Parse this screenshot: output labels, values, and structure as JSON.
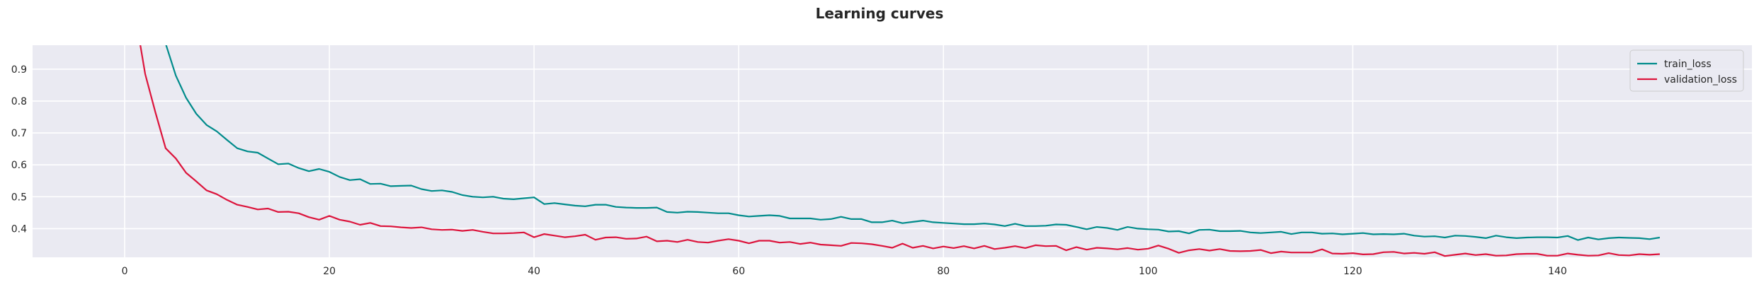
{
  "chart_data": {
    "type": "line",
    "title": "Learning curves",
    "xlabel": "",
    "ylabel": "",
    "xlim": [
      -9,
      159
    ],
    "ylim": [
      0.31,
      0.975
    ],
    "xticks": [
      0,
      20,
      40,
      60,
      80,
      100,
      120,
      140
    ],
    "yticks": [
      0.4,
      0.5,
      0.6,
      0.7,
      0.8,
      0.9
    ],
    "xtick_labels": [
      "0",
      "20",
      "40",
      "60",
      "80",
      "100",
      "120",
      "140"
    ],
    "ytick_labels": [
      "0.4",
      "0.5",
      "0.6",
      "0.7",
      "0.8",
      "0.9"
    ],
    "grid": true,
    "legend_position": "top-right",
    "series": [
      {
        "name": "train_loss",
        "color": "#008b8b",
        "points": [
          [
            4,
            0.98
          ],
          [
            5,
            0.88
          ],
          [
            6,
            0.81
          ],
          [
            7,
            0.76
          ],
          [
            8,
            0.725
          ],
          [
            9,
            0.705
          ],
          [
            10,
            0.678
          ],
          [
            11,
            0.652
          ],
          [
            12,
            0.642
          ],
          [
            13,
            0.638
          ],
          [
            14,
            0.62
          ],
          [
            15,
            0.602
          ],
          [
            16,
            0.604
          ],
          [
            17,
            0.59
          ],
          [
            18,
            0.58
          ],
          [
            19,
            0.587
          ],
          [
            20,
            0.578
          ],
          [
            21,
            0.562
          ],
          [
            22,
            0.552
          ],
          [
            23,
            0.555
          ],
          [
            24,
            0.54
          ],
          [
            25,
            0.541
          ],
          [
            26,
            0.533
          ],
          [
            27,
            0.534
          ],
          [
            28,
            0.535
          ],
          [
            29,
            0.524
          ],
          [
            30,
            0.518
          ],
          [
            31,
            0.52
          ],
          [
            32,
            0.515
          ],
          [
            33,
            0.505
          ],
          [
            34,
            0.5
          ],
          [
            35,
            0.498
          ],
          [
            36,
            0.5
          ],
          [
            37,
            0.494
          ],
          [
            38,
            0.492
          ],
          [
            39,
            0.495
          ],
          [
            40,
            0.498
          ],
          [
            41,
            0.477
          ],
          [
            42,
            0.48
          ],
          [
            43,
            0.476
          ],
          [
            44,
            0.472
          ],
          [
            45,
            0.47
          ],
          [
            46,
            0.475
          ],
          [
            47,
            0.475
          ],
          [
            48,
            0.468
          ],
          [
            49,
            0.466
          ],
          [
            50,
            0.465
          ],
          [
            51,
            0.465
          ],
          [
            52,
            0.466
          ],
          [
            53,
            0.452
          ],
          [
            54,
            0.45
          ],
          [
            55,
            0.453
          ],
          [
            56,
            0.452
          ],
          [
            57,
            0.45
          ],
          [
            58,
            0.448
          ],
          [
            59,
            0.448
          ],
          [
            60,
            0.442
          ],
          [
            61,
            0.438
          ],
          [
            62,
            0.44
          ],
          [
            63,
            0.442
          ],
          [
            64,
            0.44
          ],
          [
            65,
            0.432
          ],
          [
            66,
            0.432
          ],
          [
            67,
            0.432
          ],
          [
            68,
            0.428
          ],
          [
            69,
            0.43
          ],
          [
            70,
            0.437
          ],
          [
            71,
            0.43
          ],
          [
            72,
            0.43
          ],
          [
            73,
            0.42
          ],
          [
            74,
            0.42
          ],
          [
            75,
            0.425
          ],
          [
            76,
            0.417
          ],
          [
            77,
            0.421
          ],
          [
            78,
            0.425
          ],
          [
            79,
            0.42
          ],
          [
            80,
            0.418
          ],
          [
            81,
            0.416
          ],
          [
            82,
            0.414
          ],
          [
            83,
            0.414
          ],
          [
            84,
            0.416
          ],
          [
            85,
            0.413
          ],
          [
            86,
            0.408
          ],
          [
            87,
            0.415
          ],
          [
            88,
            0.408
          ],
          [
            89,
            0.408
          ],
          [
            90,
            0.409
          ],
          [
            91,
            0.413
          ],
          [
            92,
            0.412
          ],
          [
            93,
            0.405
          ],
          [
            94,
            0.398
          ],
          [
            95,
            0.405
          ],
          [
            96,
            0.402
          ],
          [
            97,
            0.396
          ],
          [
            98,
            0.405
          ],
          [
            99,
            0.4
          ],
          [
            100,
            0.398
          ],
          [
            101,
            0.397
          ],
          [
            102,
            0.391
          ],
          [
            103,
            0.392
          ],
          [
            104,
            0.385
          ],
          [
            105,
            0.396
          ],
          [
            106,
            0.397
          ],
          [
            107,
            0.392
          ],
          [
            108,
            0.392
          ],
          [
            109,
            0.393
          ],
          [
            110,
            0.388
          ],
          [
            111,
            0.386
          ],
          [
            112,
            0.388
          ],
          [
            113,
            0.39
          ],
          [
            114,
            0.383
          ],
          [
            115,
            0.388
          ],
          [
            116,
            0.388
          ],
          [
            117,
            0.384
          ],
          [
            118,
            0.385
          ],
          [
            119,
            0.382
          ],
          [
            120,
            0.384
          ],
          [
            121,
            0.386
          ],
          [
            122,
            0.382
          ],
          [
            123,
            0.383
          ],
          [
            124,
            0.382
          ],
          [
            125,
            0.384
          ],
          [
            126,
            0.378
          ],
          [
            127,
            0.375
          ],
          [
            128,
            0.376
          ],
          [
            129,
            0.372
          ],
          [
            130,
            0.378
          ],
          [
            131,
            0.377
          ],
          [
            132,
            0.374
          ],
          [
            133,
            0.37
          ],
          [
            134,
            0.378
          ],
          [
            135,
            0.373
          ],
          [
            136,
            0.37
          ],
          [
            137,
            0.372
          ],
          [
            138,
            0.373
          ],
          [
            139,
            0.373
          ],
          [
            140,
            0.372
          ],
          [
            141,
            0.377
          ],
          [
            142,
            0.364
          ],
          [
            143,
            0.372
          ],
          [
            144,
            0.366
          ],
          [
            145,
            0.37
          ],
          [
            146,
            0.372
          ],
          [
            147,
            0.371
          ],
          [
            148,
            0.37
          ],
          [
            149,
            0.367
          ],
          [
            150,
            0.372
          ]
        ]
      },
      {
        "name": "validation_loss",
        "color": "#dc143c",
        "points": [
          [
            1.5,
            0.98
          ],
          [
            2,
            0.885
          ],
          [
            3,
            0.765
          ],
          [
            4,
            0.652
          ],
          [
            5,
            0.62
          ],
          [
            6,
            0.575
          ],
          [
            7,
            0.548
          ],
          [
            8,
            0.52
          ],
          [
            9,
            0.508
          ],
          [
            10,
            0.49
          ],
          [
            11,
            0.475
          ],
          [
            12,
            0.468
          ],
          [
            13,
            0.46
          ],
          [
            14,
            0.463
          ],
          [
            15,
            0.452
          ],
          [
            16,
            0.453
          ],
          [
            17,
            0.448
          ],
          [
            18,
            0.436
          ],
          [
            19,
            0.428
          ],
          [
            20,
            0.44
          ],
          [
            21,
            0.428
          ],
          [
            22,
            0.422
          ],
          [
            23,
            0.412
          ],
          [
            24,
            0.418
          ],
          [
            25,
            0.408
          ],
          [
            26,
            0.407
          ],
          [
            27,
            0.404
          ],
          [
            28,
            0.402
          ],
          [
            29,
            0.404
          ],
          [
            30,
            0.398
          ],
          [
            31,
            0.396
          ],
          [
            32,
            0.397
          ],
          [
            33,
            0.393
          ],
          [
            34,
            0.396
          ],
          [
            35,
            0.39
          ],
          [
            36,
            0.385
          ],
          [
            37,
            0.385
          ],
          [
            38,
            0.386
          ],
          [
            39,
            0.388
          ],
          [
            40,
            0.373
          ],
          [
            41,
            0.383
          ],
          [
            42,
            0.378
          ],
          [
            43,
            0.373
          ],
          [
            44,
            0.376
          ],
          [
            45,
            0.381
          ],
          [
            46,
            0.365
          ],
          [
            47,
            0.372
          ],
          [
            48,
            0.373
          ],
          [
            49,
            0.368
          ],
          [
            50,
            0.369
          ],
          [
            51,
            0.375
          ],
          [
            52,
            0.36
          ],
          [
            53,
            0.362
          ],
          [
            54,
            0.358
          ],
          [
            55,
            0.365
          ],
          [
            56,
            0.358
          ],
          [
            57,
            0.356
          ],
          [
            58,
            0.362
          ],
          [
            59,
            0.367
          ],
          [
            60,
            0.362
          ],
          [
            61,
            0.354
          ],
          [
            62,
            0.362
          ],
          [
            63,
            0.362
          ],
          [
            64,
            0.356
          ],
          [
            65,
            0.358
          ],
          [
            66,
            0.352
          ],
          [
            67,
            0.356
          ],
          [
            68,
            0.35
          ],
          [
            69,
            0.348
          ],
          [
            70,
            0.346
          ],
          [
            71,
            0.355
          ],
          [
            72,
            0.354
          ],
          [
            73,
            0.351
          ],
          [
            74,
            0.346
          ],
          [
            75,
            0.34
          ],
          [
            76,
            0.353
          ],
          [
            77,
            0.34
          ],
          [
            78,
            0.346
          ],
          [
            79,
            0.338
          ],
          [
            80,
            0.344
          ],
          [
            81,
            0.339
          ],
          [
            82,
            0.345
          ],
          [
            83,
            0.338
          ],
          [
            84,
            0.346
          ],
          [
            85,
            0.336
          ],
          [
            86,
            0.34
          ],
          [
            87,
            0.345
          ],
          [
            88,
            0.339
          ],
          [
            89,
            0.348
          ],
          [
            90,
            0.345
          ],
          [
            91,
            0.346
          ],
          [
            92,
            0.332
          ],
          [
            93,
            0.342
          ],
          [
            94,
            0.334
          ],
          [
            95,
            0.34
          ],
          [
            96,
            0.338
          ],
          [
            97,
            0.335
          ],
          [
            98,
            0.339
          ],
          [
            99,
            0.334
          ],
          [
            100,
            0.337
          ],
          [
            101,
            0.347
          ],
          [
            102,
            0.337
          ],
          [
            103,
            0.324
          ],
          [
            104,
            0.332
          ],
          [
            105,
            0.336
          ],
          [
            106,
            0.331
          ],
          [
            107,
            0.336
          ],
          [
            108,
            0.33
          ],
          [
            109,
            0.329
          ],
          [
            110,
            0.33
          ],
          [
            111,
            0.333
          ],
          [
            112,
            0.323
          ],
          [
            113,
            0.328
          ],
          [
            114,
            0.325
          ],
          [
            115,
            0.325
          ],
          [
            116,
            0.325
          ],
          [
            117,
            0.335
          ],
          [
            118,
            0.322
          ],
          [
            119,
            0.321
          ],
          [
            120,
            0.323
          ],
          [
            121,
            0.319
          ],
          [
            122,
            0.32
          ],
          [
            123,
            0.326
          ],
          [
            124,
            0.327
          ],
          [
            125,
            0.322
          ],
          [
            126,
            0.324
          ],
          [
            127,
            0.321
          ],
          [
            128,
            0.326
          ],
          [
            129,
            0.314
          ],
          [
            130,
            0.318
          ],
          [
            131,
            0.322
          ],
          [
            132,
            0.317
          ],
          [
            133,
            0.32
          ],
          [
            134,
            0.315
          ],
          [
            135,
            0.316
          ],
          [
            136,
            0.32
          ],
          [
            137,
            0.321
          ],
          [
            138,
            0.321
          ],
          [
            139,
            0.315
          ],
          [
            140,
            0.315
          ],
          [
            141,
            0.322
          ],
          [
            142,
            0.318
          ],
          [
            143,
            0.315
          ],
          [
            144,
            0.316
          ],
          [
            145,
            0.323
          ],
          [
            146,
            0.317
          ],
          [
            147,
            0.316
          ],
          [
            148,
            0.32
          ],
          [
            149,
            0.318
          ],
          [
            150,
            0.32
          ]
        ]
      }
    ],
    "style": {
      "background": "#ffffff",
      "plot_background": "#eaeaf2",
      "grid_color": "#ffffff",
      "text_color": "#262626"
    }
  }
}
